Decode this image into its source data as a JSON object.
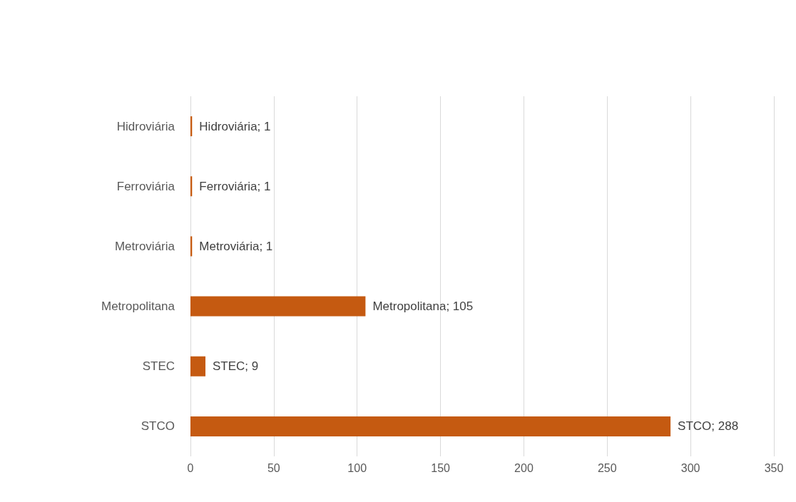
{
  "chart_data": {
    "type": "bar",
    "orientation": "horizontal",
    "categories": [
      "Hidroviária",
      "Ferroviária",
      "Metroviária",
      "Metropolitana",
      "STEC",
      "STCO"
    ],
    "values": [
      1,
      1,
      1,
      105,
      9,
      288
    ],
    "value_labels": [
      "Hidroviária; 1",
      "Ferroviária; 1",
      "Metroviária; 1",
      "Metropolitana; 105",
      "STEC; 9",
      "STCO; 288"
    ],
    "color": "#c55a11",
    "xlim": [
      0,
      350
    ],
    "xticks": [
      0,
      50,
      100,
      150,
      200,
      250,
      300,
      350
    ],
    "grid": "x"
  }
}
